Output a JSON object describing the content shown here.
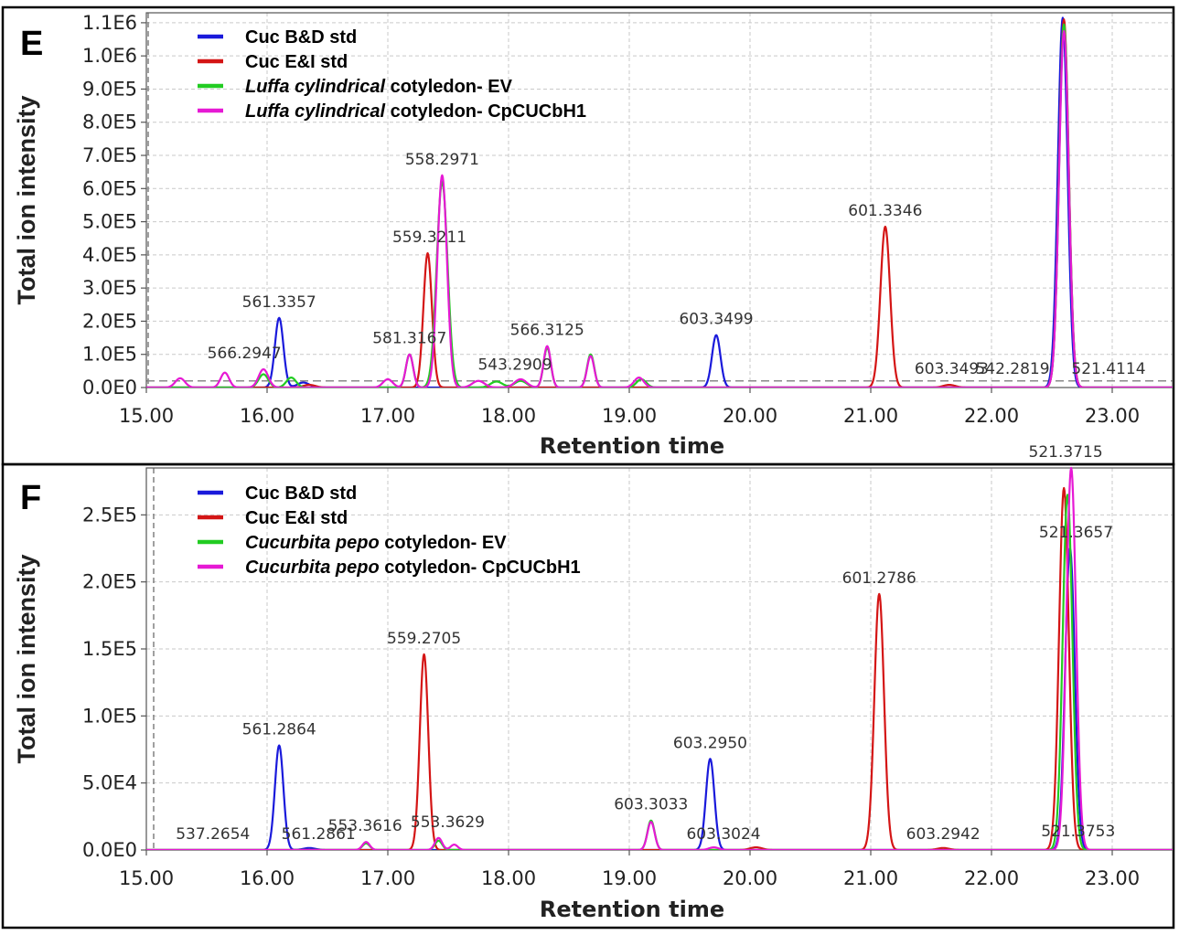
{
  "chart_data": [
    {
      "type": "line",
      "panel_label": "E",
      "xlabel": "Retention time",
      "ylabel": "Total ion intensity",
      "xlim": [
        15.0,
        23.5
      ],
      "ylim": [
        0,
        1130000
      ],
      "x_ticks": [
        "15.00",
        "16.00",
        "17.00",
        "18.00",
        "19.00",
        "20.00",
        "21.00",
        "22.00",
        "23.00"
      ],
      "y_ticks": [
        "0.0E0",
        "1.0E5",
        "2.0E5",
        "3.0E5",
        "4.0E5",
        "5.0E5",
        "6.0E5",
        "7.0E5",
        "8.0E5",
        "9.0E5",
        "1.0E6",
        "1.1E6"
      ],
      "grid": true,
      "legend_position": "top-left",
      "threshold": 20000,
      "series": [
        {
          "name": "Cuc B&D std",
          "color": "#1a1adb",
          "peaks": [
            [
              16.1,
              210000,
              0.035
            ],
            [
              19.72,
              158000,
              0.035
            ],
            [
              22.59,
              1115000,
              0.04
            ],
            [
              16.3,
              15000,
              0.05
            ]
          ]
        },
        {
          "name": "Cuc E&I std",
          "color": "#d41515",
          "peaks": [
            [
              17.33,
              405000,
              0.035
            ],
            [
              21.12,
              485000,
              0.04
            ],
            [
              22.6,
              1110000,
              0.04
            ],
            [
              21.65,
              8000,
              0.05
            ],
            [
              16.35,
              8000,
              0.05
            ]
          ]
        },
        {
          "name": "Luffa cylindrical cotyledon- EV",
          "color": "#22cc22",
          "peaks": [
            [
              17.45,
              620000,
              0.045
            ],
            [
              17.18,
              100000,
              0.03
            ],
            [
              18.32,
              120000,
              0.03
            ],
            [
              18.68,
              100000,
              0.03
            ],
            [
              15.97,
              40000,
              0.04
            ],
            [
              16.2,
              30000,
              0.04
            ],
            [
              22.6,
              1095000,
              0.04
            ],
            [
              19.1,
              25000,
              0.04
            ],
            [
              18.1,
              20000,
              0.05
            ],
            [
              17.9,
              18000,
              0.05
            ]
          ]
        },
        {
          "name": "Luffa cylindrical cotyledon- CpCUCbH1",
          "color": "#e619d4",
          "peaks": [
            [
              17.45,
              640000,
              0.04
            ],
            [
              17.18,
              100000,
              0.03
            ],
            [
              18.32,
              125000,
              0.03
            ],
            [
              18.68,
              95000,
              0.03
            ],
            [
              15.97,
              55000,
              0.04
            ],
            [
              15.65,
              45000,
              0.035
            ],
            [
              15.28,
              28000,
              0.04
            ],
            [
              22.6,
              1075000,
              0.04
            ],
            [
              19.08,
              30000,
              0.04
            ],
            [
              18.1,
              25000,
              0.05
            ],
            [
              17.0,
              25000,
              0.04
            ],
            [
              17.75,
              20000,
              0.05
            ]
          ]
        }
      ],
      "legend": [
        {
          "text": "Cuc B&D std",
          "color": "#1a1adb",
          "italic": "",
          "rest": ""
        },
        {
          "text": "Cuc E&I std",
          "color": "#d41515",
          "italic": "",
          "rest": ""
        },
        {
          "text": "",
          "color": "#22cc22",
          "italic": "Luffa cylindrical",
          "rest": " cotyledon- EV"
        },
        {
          "text": "",
          "color": "#e619d4",
          "italic": "Luffa cylindrical",
          "rest": " cotyledon- CpCUCbH1"
        }
      ],
      "peak_labels": [
        {
          "text": "561.3357",
          "x": 16.1,
          "y": 210000
        },
        {
          "text": "566.2947",
          "x": 15.85,
          "y": 55000
        },
        {
          "text": "581.3167",
          "x": 17.18,
          "y": 100000
        },
        {
          "text": "559.3211",
          "x": 17.33,
          "y": 405000
        },
        {
          "text": "558.2971",
          "x": 17.45,
          "y": 640000
        },
        {
          "text": "543.2909",
          "x": 17.75,
          "y": 20000
        },
        {
          "text": "566.3125",
          "x": 18.32,
          "y": 125000
        },
        {
          "text": "603.3499",
          "x": 19.72,
          "y": 158000
        },
        {
          "text": "601.3346",
          "x": 21.12,
          "y": 485000
        },
        {
          "text": "603.3493",
          "x": 21.67,
          "y": 8000
        },
        {
          "text": "542.2819",
          "x": 22.25,
          "y": 8000
        },
        {
          "text": "521.4114",
          "x": 22.78,
          "y": 8000
        }
      ]
    },
    {
      "type": "line",
      "panel_label": "F",
      "xlabel": "Retention time",
      "ylabel": "Total ion intensity",
      "xlim": [
        15.0,
        23.5
      ],
      "ylim": [
        0,
        285000
      ],
      "x_ticks": [
        "15.00",
        "16.00",
        "17.00",
        "18.00",
        "19.00",
        "20.00",
        "21.00",
        "22.00",
        "23.00"
      ],
      "y_ticks": [
        "0.0E0",
        "5.0E4",
        "1.0E5",
        "1.5E5",
        "2.0E5",
        "2.5E5"
      ],
      "grid": true,
      "legend_position": "top-left",
      "series": [
        {
          "name": "Cuc B&D std",
          "color": "#1a1adb",
          "peaks": [
            [
              16.1,
              78000,
              0.035
            ],
            [
              19.67,
              68000,
              0.035
            ],
            [
              22.65,
              225000,
              0.04
            ],
            [
              16.35,
              1500,
              0.05
            ]
          ]
        },
        {
          "name": "Cuc E&I std",
          "color": "#d41515",
          "peaks": [
            [
              17.3,
              146000,
              0.035
            ],
            [
              21.07,
              191000,
              0.04
            ],
            [
              22.6,
              270000,
              0.04
            ],
            [
              20.05,
              2000,
              0.05
            ],
            [
              21.6,
              1500,
              0.05
            ]
          ]
        },
        {
          "name": "Cucurbita pepo cotyledon- EV",
          "color": "#22cc22",
          "peaks": [
            [
              19.18,
              22000,
              0.03
            ],
            [
              17.42,
              7000,
              0.03
            ],
            [
              16.82,
              5000,
              0.03
            ],
            [
              22.63,
              265000,
              0.04
            ]
          ]
        },
        {
          "name": "Cucurbita pepo cotyledon- CpCUCbH1",
          "color": "#e619d4",
          "peaks": [
            [
              19.18,
              21000,
              0.03
            ],
            [
              16.82,
              6000,
              0.03
            ],
            [
              17.42,
              9000,
              0.03
            ],
            [
              17.55,
              4000,
              0.03
            ],
            [
              22.66,
              285000,
              0.04
            ],
            [
              19.7,
              2000,
              0.04
            ]
          ]
        }
      ],
      "legend": [
        {
          "text": "Cuc B&D std",
          "color": "#1a1adb",
          "italic": "",
          "rest": ""
        },
        {
          "text": "Cuc E&I std",
          "color": "#d41515",
          "italic": "",
          "rest": ""
        },
        {
          "text": "",
          "color": "#22cc22",
          "italic": "Cucurbita pepo",
          "rest": " cotyledon- EV"
        },
        {
          "text": "",
          "color": "#e619d4",
          "italic": "Cucurbita pepo",
          "rest": " cotyledon- CpCUCbH1"
        }
      ],
      "peak_labels": [
        {
          "text": "537.2654",
          "x": 15.4,
          "y": 0
        },
        {
          "text": "561.2864",
          "x": 16.1,
          "y": 78000
        },
        {
          "text": "561.2861",
          "x": 16.35,
          "y": 0
        },
        {
          "text": "553.3616",
          "x": 16.85,
          "y": 6000
        },
        {
          "text": "553.3629",
          "x": 17.42,
          "y": 9000
        },
        {
          "text": "559.2705",
          "x": 17.3,
          "y": 146000
        },
        {
          "text": "603.3033",
          "x": 19.18,
          "y": 22000
        },
        {
          "text": "603.3024",
          "x": 19.72,
          "y": 0
        },
        {
          "text": "603.2950",
          "x": 19.67,
          "y": 68000
        },
        {
          "text": "601.2786",
          "x": 21.07,
          "y": 191000
        },
        {
          "text": "603.2942",
          "x": 21.6,
          "y": 0
        },
        {
          "text": "521.3715",
          "x": 22.66,
          "y": 285000
        },
        {
          "text": "521.3657",
          "x": 22.64,
          "y": 225000
        },
        {
          "text": "521.3753",
          "x": 22.68,
          "y": 2000
        }
      ]
    }
  ]
}
